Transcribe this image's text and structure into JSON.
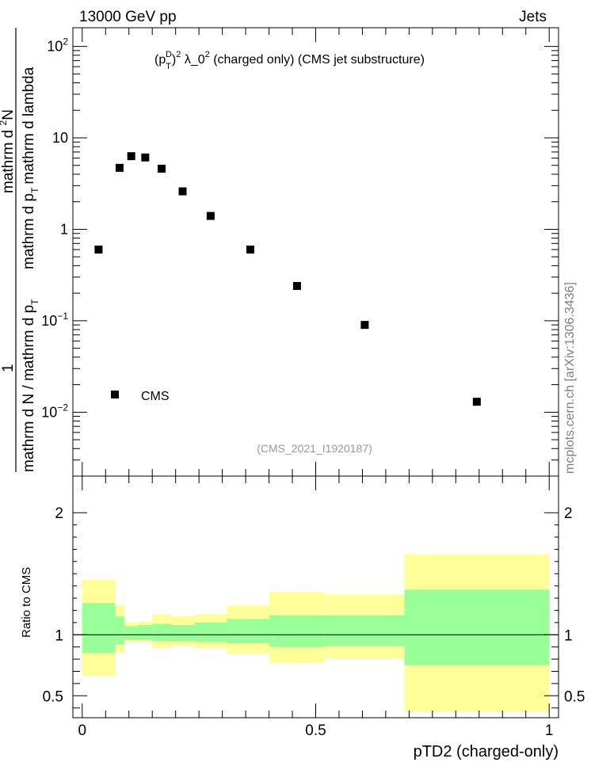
{
  "header": {
    "left": "13000 GeV pp",
    "right": "Jets"
  },
  "side_label": "mcplots.cern.ch [arXiv:1306.3436]",
  "chart_data": [
    {
      "type": "scatter",
      "title": "(p_T^D)^2 λ_0^2 (charged only) (CMS jet substructure)",
      "title_parts": {
        "p": "(p",
        "sub": "T",
        "sup_d": "D",
        "close": ")",
        "sq": "2",
        "lam": " λ_0",
        "rest": " (charged only) (CMS jet substructure)"
      },
      "ylabel": {
        "numer_1": "1",
        "denom": "mathrm d N / mathrm d p",
        "denom_sub": "T",
        "numer_2a": "mathrm d",
        "numer_2sup": "2",
        "numer_2b": "N",
        "denom_2a": "mathrm d p",
        "denom_2sub": "T",
        "denom_2b": "mathrm d lambda"
      },
      "yscale": "log",
      "ylim": [
        0.002,
        160
      ],
      "xlim": [
        -0.02,
        1.02
      ],
      "ytick_labels": [
        "10^-2",
        "10^-1",
        "1",
        "10",
        "10^2"
      ],
      "ytick_values": [
        0.01,
        0.1,
        1,
        10,
        100
      ],
      "legend": {
        "label": "CMS",
        "position": "bottom-left"
      },
      "watermark": "(CMS_2021_I1920187)",
      "series": [
        {
          "name": "CMS",
          "marker": "square",
          "color": "#000000",
          "x": [
            0.035,
            0.08,
            0.105,
            0.135,
            0.17,
            0.215,
            0.275,
            0.36,
            0.46,
            0.605,
            0.845
          ],
          "values": [
            0.6,
            4.7,
            6.3,
            6.1,
            4.6,
            2.6,
            1.4,
            0.6,
            0.24,
            0.09,
            0.013
          ]
        }
      ]
    },
    {
      "type": "area",
      "ylabel": "Ratio to CMS",
      "xlabel": "pTD2 (charged-only)",
      "xlim": [
        -0.02,
        1.02
      ],
      "ylim": [
        0.32,
        2.3
      ],
      "xtick_labels": [
        "0",
        "0.5",
        "1"
      ],
      "xtick_values": [
        0,
        0.5,
        1
      ],
      "ytick_labels": [
        "0.5",
        "1",
        "2"
      ],
      "ytick_values": [
        0.5,
        1,
        2
      ],
      "reference_line": 1,
      "colors": {
        "outer": "#ffff99",
        "inner": "#99ff99",
        "line": "#000000"
      },
      "bins": [
        {
          "x0": 0.0,
          "x1": 0.07,
          "inner": [
            0.85,
            1.26
          ],
          "outer": [
            0.66,
            1.45
          ]
        },
        {
          "x0": 0.07,
          "x1": 0.09,
          "inner": [
            0.92,
            1.15
          ],
          "outer": [
            0.85,
            1.24
          ]
        },
        {
          "x0": 0.09,
          "x1": 0.12,
          "inner": [
            0.96,
            1.07
          ],
          "outer": [
            0.94,
            1.1
          ]
        },
        {
          "x0": 0.12,
          "x1": 0.15,
          "inner": [
            0.96,
            1.08
          ],
          "outer": [
            0.94,
            1.11
          ]
        },
        {
          "x0": 0.15,
          "x1": 0.19,
          "inner": [
            0.95,
            1.09
          ],
          "outer": [
            0.89,
            1.17
          ]
        },
        {
          "x0": 0.19,
          "x1": 0.24,
          "inner": [
            0.95,
            1.08
          ],
          "outer": [
            0.91,
            1.15
          ]
        },
        {
          "x0": 0.24,
          "x1": 0.31,
          "inner": [
            0.94,
            1.1
          ],
          "outer": [
            0.89,
            1.17
          ]
        },
        {
          "x0": 0.31,
          "x1": 0.4,
          "inner": [
            0.93,
            1.13
          ],
          "outer": [
            0.84,
            1.24
          ]
        },
        {
          "x0": 0.4,
          "x1": 0.52,
          "inner": [
            0.9,
            1.16
          ],
          "outer": [
            0.77,
            1.35
          ]
        },
        {
          "x0": 0.52,
          "x1": 0.69,
          "inner": [
            0.91,
            1.16
          ],
          "outer": [
            0.8,
            1.33
          ]
        },
        {
          "x0": 0.69,
          "x1": 1.0,
          "inner": [
            0.75,
            1.37
          ],
          "outer": [
            0.37,
            1.66
          ]
        }
      ]
    }
  ]
}
